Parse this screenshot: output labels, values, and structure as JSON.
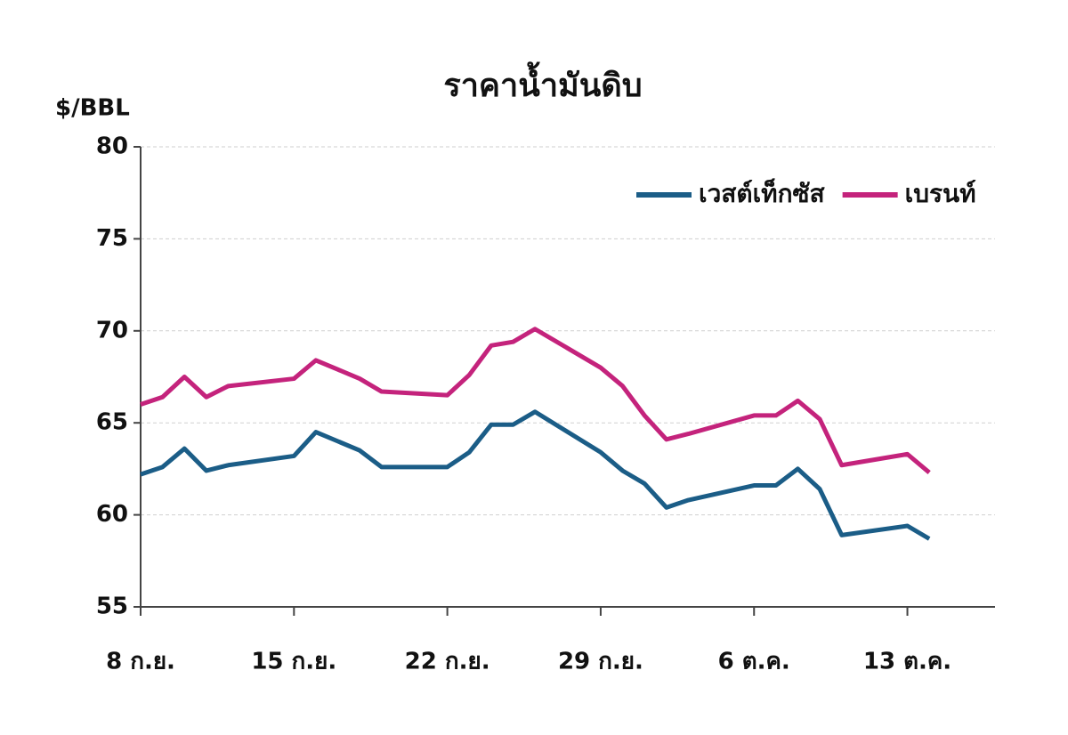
{
  "chart_data": {
    "type": "line",
    "title": "ราคาน้ำมันดิบ",
    "y_label": "$/BBL",
    "x": [
      0,
      1,
      2,
      3,
      4,
      7,
      8,
      9,
      10,
      11,
      14,
      15,
      16,
      17,
      18,
      21,
      22,
      23,
      24,
      25,
      28,
      29,
      30,
      31,
      32,
      35,
      36
    ],
    "series": [
      {
        "name": "เวสต์เท็กซัส",
        "color": "#1b5d87",
        "values": [
          62.2,
          62.6,
          63.6,
          62.4,
          62.7,
          63.2,
          64.5,
          64.0,
          63.5,
          62.6,
          62.6,
          63.4,
          64.9,
          64.9,
          65.6,
          63.4,
          62.4,
          61.7,
          60.4,
          60.8,
          61.6,
          61.6,
          62.5,
          61.4,
          58.9,
          59.4,
          58.7
        ]
      },
      {
        "name": "เบรนท์",
        "color": "#c4237c",
        "values": [
          66.0,
          66.4,
          67.5,
          66.4,
          67.0,
          67.4,
          68.4,
          67.9,
          67.4,
          66.7,
          66.5,
          67.6,
          69.2,
          69.4,
          70.1,
          68.0,
          67.0,
          65.4,
          64.1,
          64.4,
          65.4,
          65.4,
          66.2,
          65.2,
          62.7,
          63.3,
          62.3
        ]
      }
    ],
    "xlim": [
      0,
      39
    ],
    "xticks": [
      {
        "value": 0,
        "label": "8 ก.ย."
      },
      {
        "value": 7,
        "label": "15 ก.ย."
      },
      {
        "value": 14,
        "label": "22 ก.ย."
      },
      {
        "value": 21,
        "label": "29 ก.ย."
      },
      {
        "value": 28,
        "label": "6 ต.ค."
      },
      {
        "value": 35,
        "label": "13 ต.ค."
      }
    ],
    "ylim": [
      55,
      80
    ],
    "yticks": [
      55,
      60,
      65,
      70,
      75,
      80
    ],
    "grid": true,
    "legend": "upper-right"
  }
}
